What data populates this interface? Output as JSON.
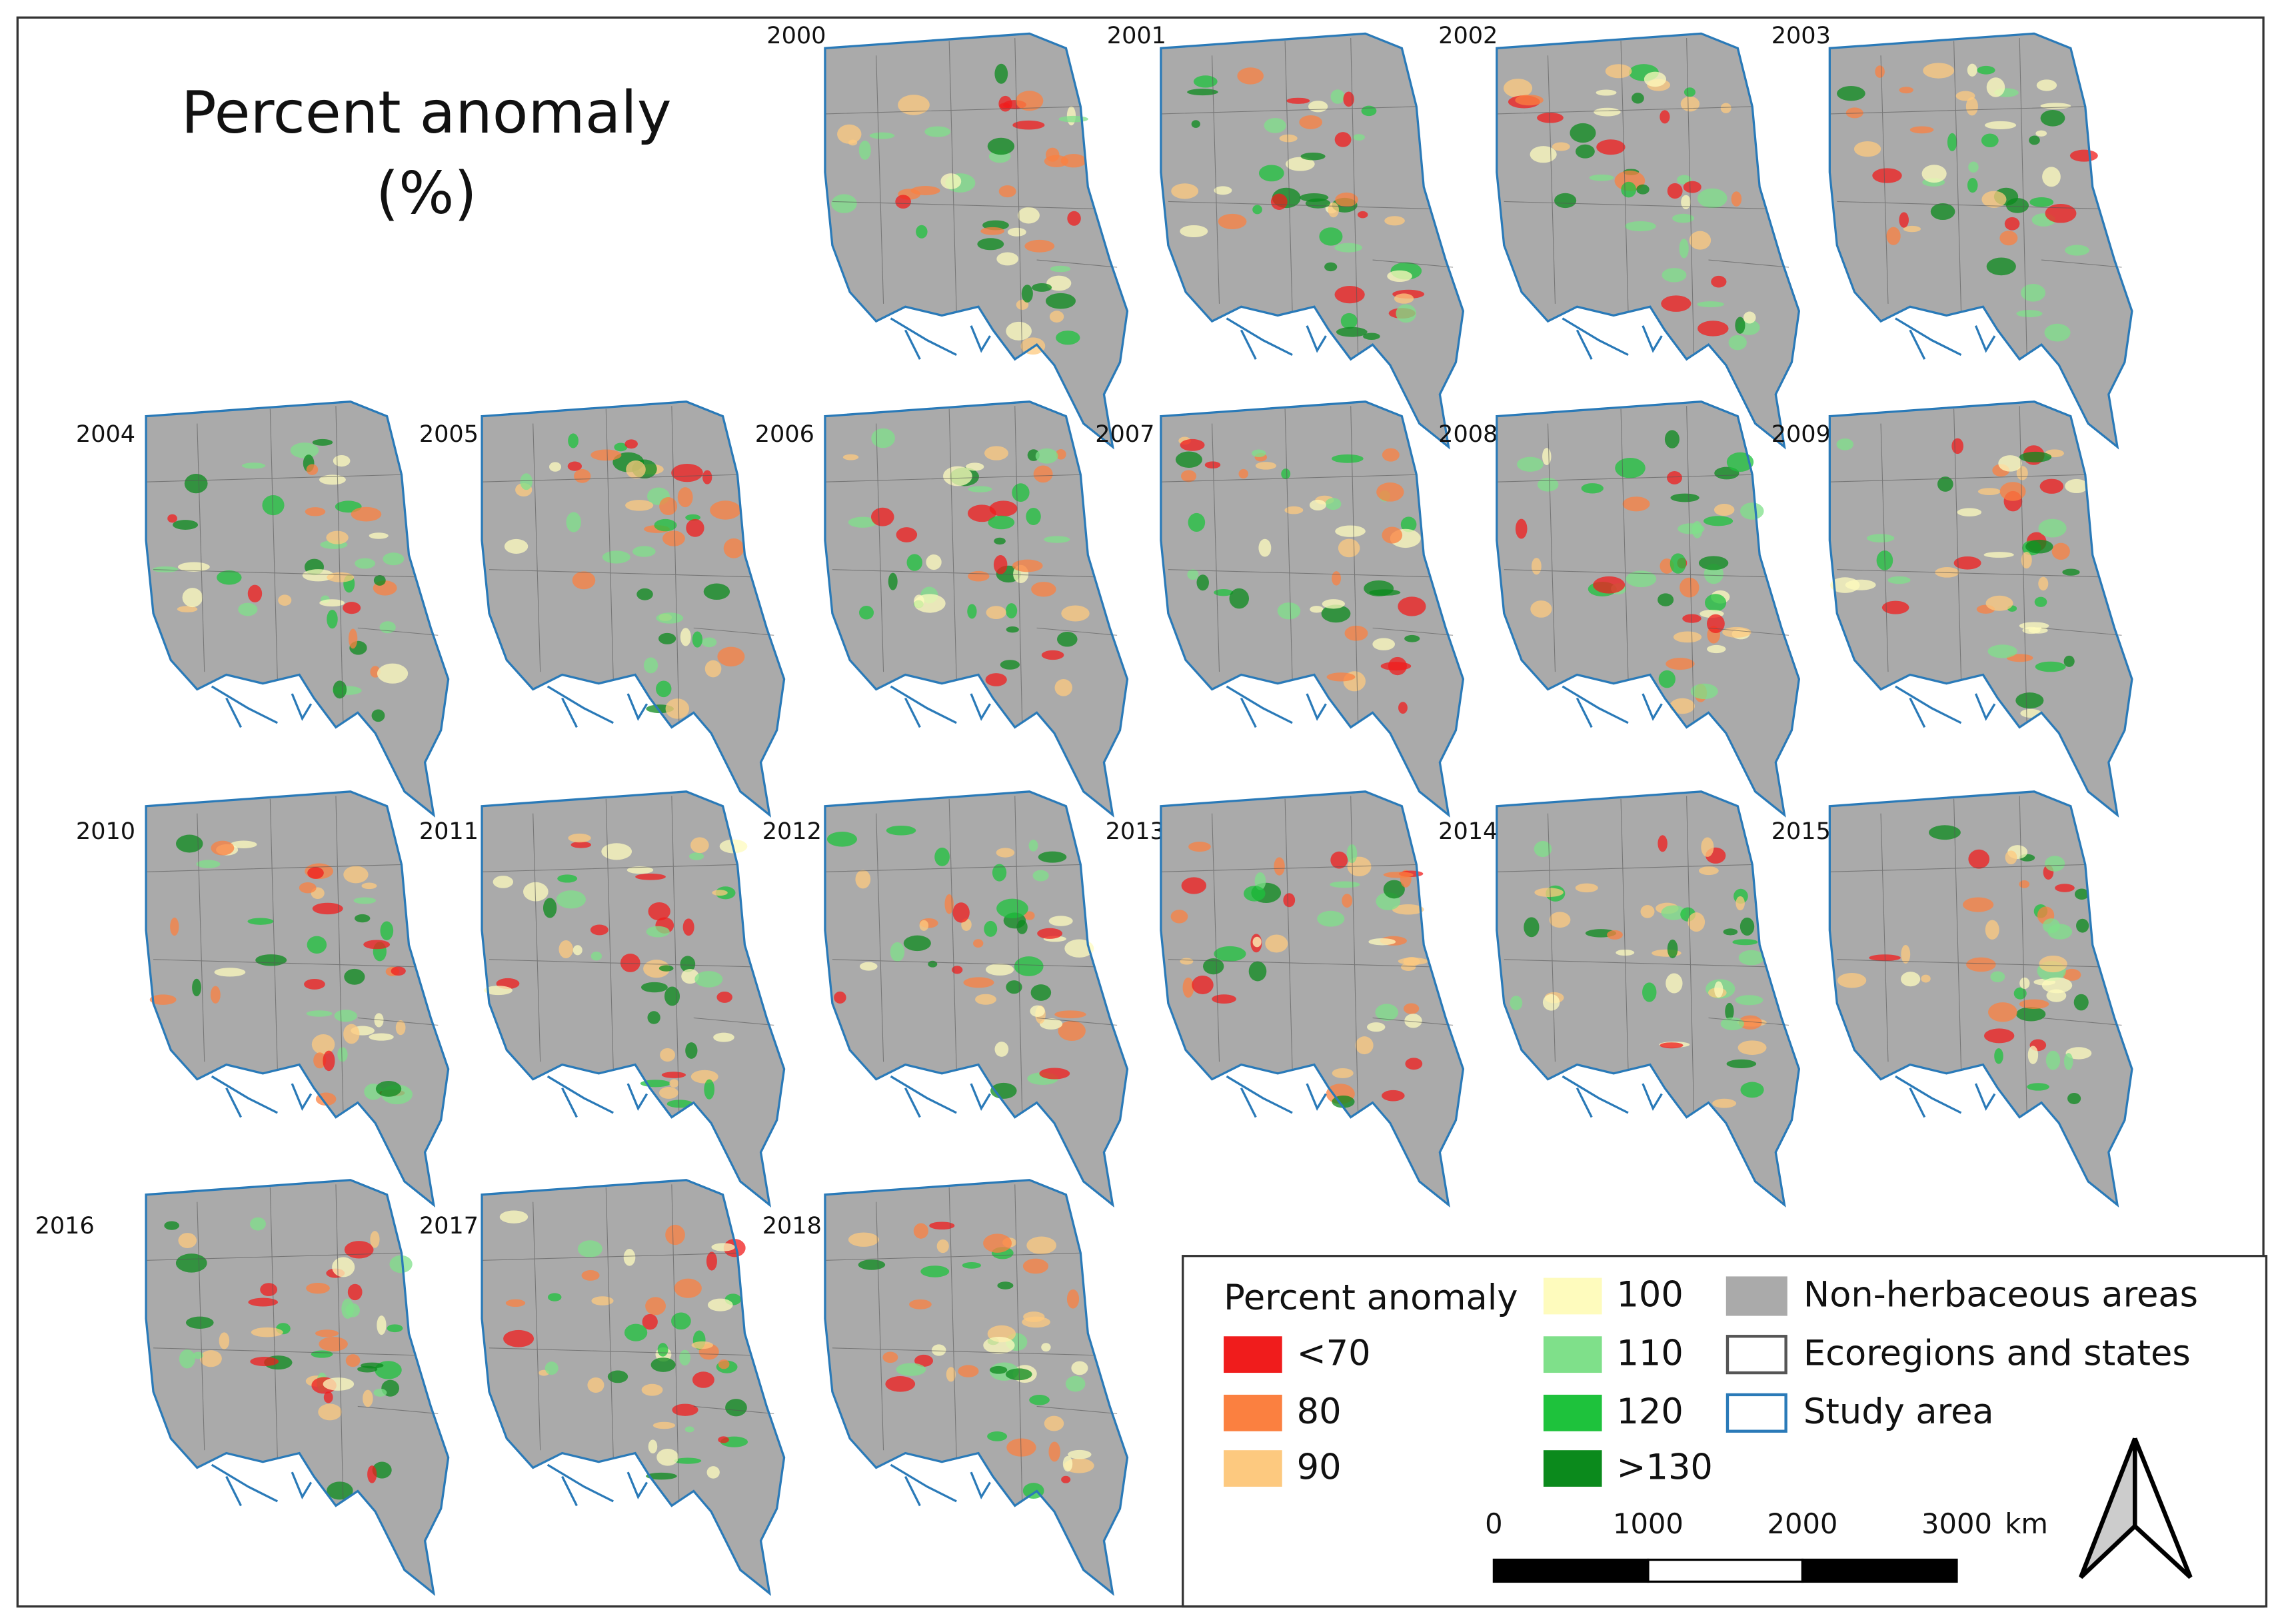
{
  "title": "Percent anomaly",
  "title_unit": "(%)",
  "panels": [
    {
      "year": "2000"
    },
    {
      "year": "2001"
    },
    {
      "year": "2002"
    },
    {
      "year": "2003"
    },
    {
      "year": "2004"
    },
    {
      "year": "2005"
    },
    {
      "year": "2006"
    },
    {
      "year": "2007"
    },
    {
      "year": "2008"
    },
    {
      "year": "2009"
    },
    {
      "year": "2010"
    },
    {
      "year": "2011"
    },
    {
      "year": "2012"
    },
    {
      "year": "2013"
    },
    {
      "year": "2014"
    },
    {
      "year": "2015"
    },
    {
      "year": "2016"
    },
    {
      "year": "2017"
    },
    {
      "year": "2018"
    }
  ],
  "legend": {
    "title": "Percent anomaly",
    "classes": [
      {
        "label": "<70",
        "color": "#f01c1c"
      },
      {
        "label": "80",
        "color": "#fb8040"
      },
      {
        "label": "90",
        "color": "#fdc97f"
      },
      {
        "label": "100",
        "color": "#fefbbd"
      },
      {
        "label": "110",
        "color": "#7fe08a"
      },
      {
        "label": "120",
        "color": "#1ec23c"
      },
      {
        "label": ">130",
        "color": "#0b8a1c"
      }
    ],
    "layers": [
      {
        "label": "Non-herbaceous areas",
        "fill": "#aaaaaa",
        "stroke": "#aaaaaa"
      },
      {
        "label": "Ecoregions and states",
        "fill": "#ffffff",
        "stroke": "#555555"
      },
      {
        "label": "Study area",
        "fill": "#ffffff",
        "stroke": "#2a7ab8"
      }
    ]
  },
  "scale_bar": {
    "ticks": [
      0,
      1000,
      2000,
      3000
    ],
    "unit": "km"
  }
}
